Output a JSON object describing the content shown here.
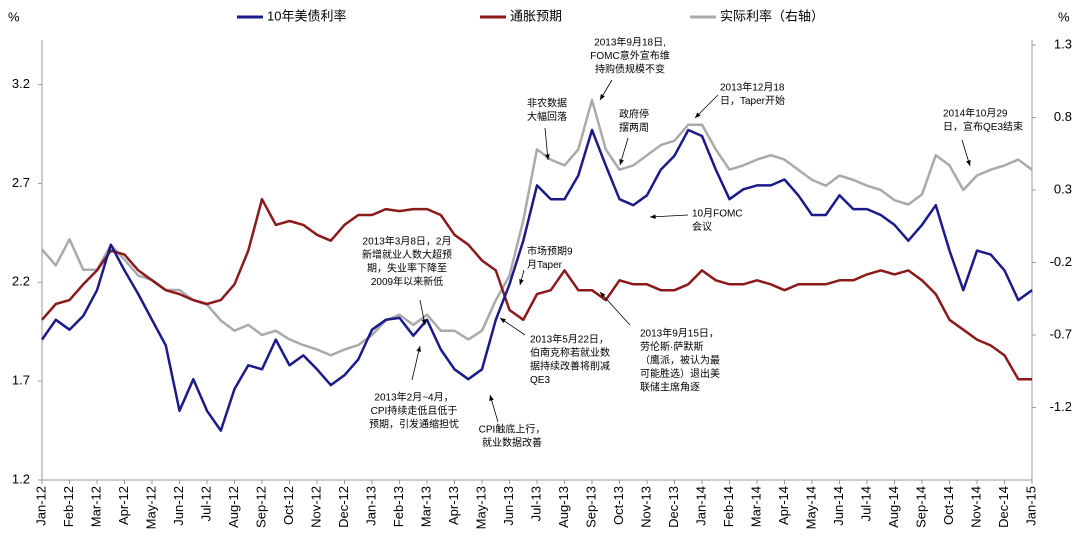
{
  "chart_data": {
    "type": "line",
    "y_label": "%",
    "y2_label": "%",
    "categories": [
      "Jan-12",
      null,
      "Feb-12",
      null,
      "Mar-12",
      null,
      "Apr-12",
      null,
      "May-12",
      null,
      "Jun-12",
      null,
      "Jul-12",
      null,
      "Aug-12",
      null,
      "Sep-12",
      null,
      "Oct-12",
      null,
      "Nov-12",
      null,
      "Dec-12",
      null,
      "Jan-13",
      null,
      "Feb-13",
      null,
      "Mar-13",
      null,
      "Apr-13",
      null,
      "May-13",
      null,
      "Jun-13",
      null,
      "Jul-13",
      null,
      "Aug-13",
      null,
      "Sep-13",
      null,
      "Oct-13",
      null,
      "Nov-13",
      null,
      "Dec-13",
      null,
      "Jan-14",
      null,
      "Feb-14",
      null,
      "Mar-14",
      null,
      "Apr-14",
      null,
      "May-14",
      null,
      "Jun-14",
      null,
      "Jul-14",
      null,
      "Aug-14",
      null,
      "Sep-14",
      null,
      "Oct-14",
      null,
      "Nov-14",
      null,
      "Dec-14",
      null,
      "Jan-15"
    ],
    "series": [
      {
        "name": "10年美债利率",
        "color": "#1b1a8a",
        "values": [
          1.91,
          2.01,
          1.96,
          2.03,
          2.16,
          2.39,
          2.26,
          2.14,
          2.01,
          1.88,
          1.55,
          1.71,
          1.55,
          1.45,
          1.66,
          1.78,
          1.76,
          1.91,
          1.78,
          1.83,
          1.76,
          1.68,
          1.73,
          1.81,
          1.96,
          2.01,
          2.02,
          1.93,
          2.01,
          1.86,
          1.76,
          1.71,
          1.76,
          2.01,
          2.19,
          2.41,
          2.69,
          2.62,
          2.62,
          2.74,
          2.97,
          2.79,
          2.62,
          2.59,
          2.64,
          2.77,
          2.84,
          2.97,
          2.94,
          2.77,
          2.62,
          2.67,
          2.69,
          2.69,
          2.72,
          2.64,
          2.54,
          2.54,
          2.64,
          2.57,
          2.57,
          2.54,
          2.49,
          2.41,
          2.49,
          2.59,
          2.36,
          2.16,
          2.36,
          2.34,
          2.26,
          2.11,
          2.16
        ]
      },
      {
        "name": "通胀预期",
        "color": "#8b1a1a",
        "values": [
          2.01,
          2.09,
          2.11,
          2.19,
          2.26,
          2.36,
          2.34,
          2.26,
          2.21,
          2.16,
          2.14,
          2.11,
          2.09,
          2.11,
          2.19,
          2.36,
          2.62,
          2.49,
          2.51,
          2.49,
          2.44,
          2.41,
          2.49,
          2.54,
          2.54,
          2.57,
          2.56,
          2.57,
          2.57,
          2.54,
          2.44,
          2.39,
          2.31,
          2.26,
          2.06,
          2.01,
          2.14,
          2.16,
          2.26,
          2.16,
          2.16,
          2.11,
          2.21,
          2.19,
          2.19,
          2.16,
          2.16,
          2.19,
          2.26,
          2.21,
          2.19,
          2.19,
          2.21,
          2.19,
          2.16,
          2.19,
          2.19,
          2.19,
          2.21,
          2.21,
          2.24,
          2.26,
          2.24,
          2.26,
          2.21,
          2.14,
          2.01,
          1.96,
          1.91,
          1.88,
          1.83,
          1.71,
          1.71
        ]
      },
      {
        "name": "实际利率（右轴）",
        "color": "#aaaaaa",
        "axis": "y2",
        "values": [
          -0.11,
          -0.22,
          -0.04,
          -0.25,
          -0.25,
          -0.08,
          -0.18,
          -0.29,
          -0.32,
          -0.39,
          -0.39,
          -0.46,
          -0.49,
          -0.6,
          -0.67,
          -0.63,
          -0.7,
          -0.67,
          -0.73,
          -0.77,
          -0.8,
          -0.84,
          -0.8,
          -0.77,
          -0.7,
          -0.6,
          -0.56,
          -0.63,
          -0.56,
          -0.67,
          -0.67,
          -0.73,
          -0.67,
          -0.46,
          -0.29,
          0.09,
          0.58,
          0.51,
          0.47,
          0.58,
          0.92,
          0.58,
          0.44,
          0.47,
          0.54,
          0.61,
          0.64,
          0.75,
          0.75,
          0.58,
          0.44,
          0.47,
          0.51,
          0.54,
          0.51,
          0.44,
          0.37,
          0.33,
          0.4,
          0.37,
          0.33,
          0.3,
          0.23,
          0.2,
          0.27,
          0.54,
          0.47,
          0.3,
          0.4,
          0.44,
          0.47,
          0.51,
          0.44
        ]
      }
    ],
    "ylim": [
      1.2,
      3.4
    ],
    "yticks": [
      1.2,
      1.7,
      2.2,
      2.7,
      3.2
    ],
    "y2lim": [
      -1.7,
      1.3
    ],
    "y2ticks": [
      -1.2,
      -0.7,
      -0.2,
      0.3,
      0.8,
      1.3
    ],
    "legend": "top",
    "annotations": [
      [
        "2013年9月18日,",
        "FOMC意外宣布维",
        "持购债规模不变"
      ],
      [
        "非农数据",
        "大幅回落"
      ],
      [
        "政府停",
        "摆两周"
      ],
      [
        "2013年12月18",
        "日，Taper开始"
      ],
      [
        "2014年10月29",
        "日，宣布QE3结束"
      ],
      [
        "10月FOMC",
        "会议"
      ],
      [
        "2013年3月8日，2月",
        "新增就业人数大超预",
        "期，失业率下降至",
        "2009年以来新低"
      ],
      [
        "市场预期9",
        "月Taper"
      ],
      [
        "2013年5月22日，",
        "伯南克称若就业数",
        "据持续改善将削减",
        "QE3"
      ],
      [
        "2013年9月15日，",
        "劳伦斯·萨默斯",
        "（鹰派，被认为最",
        "可能胜选）退出美",
        "联储主席角逐"
      ],
      [
        "2013年2月~4月，",
        "CPI持续走低且低于",
        "预期，引发通缩担忧"
      ],
      [
        "CPI触底上行，",
        "就业数据改善"
      ]
    ]
  }
}
